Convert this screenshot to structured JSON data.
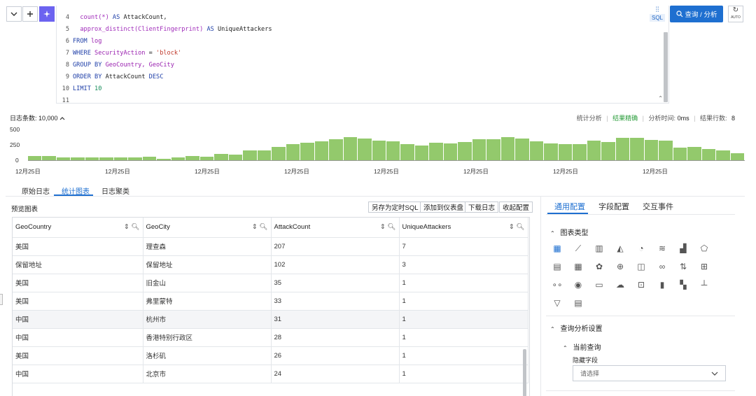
{
  "editor": {
    "lines": [
      {
        "n": "4",
        "tokens": [
          {
            "t": "  count(*) ",
            "c": "fn"
          },
          {
            "t": "AS ",
            "c": "kw"
          },
          {
            "t": "AttackCount,",
            "c": "tx"
          }
        ]
      },
      {
        "n": "5",
        "tokens": [
          {
            "t": "  approx_distinct(ClientFingerprint) ",
            "c": "fn"
          },
          {
            "t": "AS ",
            "c": "kw"
          },
          {
            "t": "UniqueAttackers",
            "c": "tx"
          }
        ]
      },
      {
        "n": "6",
        "tokens": [
          {
            "t": "FROM ",
            "c": "kw"
          },
          {
            "t": "log",
            "c": "id"
          }
        ]
      },
      {
        "n": "7",
        "tokens": [
          {
            "t": "WHERE ",
            "c": "kw"
          },
          {
            "t": "SecurityAction ",
            "c": "id"
          },
          {
            "t": "= ",
            "c": "tx"
          },
          {
            "t": "'block'",
            "c": "str"
          }
        ]
      },
      {
        "n": "8",
        "tokens": [
          {
            "t": "GROUP BY ",
            "c": "kw"
          },
          {
            "t": "GeoCountry, GeoCity",
            "c": "id"
          }
        ]
      },
      {
        "n": "9",
        "tokens": [
          {
            "t": "ORDER BY ",
            "c": "kw"
          },
          {
            "t": "AttackCount ",
            "c": "tx"
          },
          {
            "t": "DESC",
            "c": "kw"
          }
        ]
      },
      {
        "n": "10",
        "tokens": [
          {
            "t": "LIMIT ",
            "c": "kw"
          },
          {
            "t": "10",
            "c": "num"
          }
        ]
      },
      {
        "n": "11",
        "tokens": []
      }
    ],
    "sql_badge": "SQL"
  },
  "toolbar": {
    "query_button": "查询 / 分析",
    "auto_label": "AUTO"
  },
  "histogram": {
    "count_label": "日志条数: 10,000",
    "stats_label": "统计分析",
    "accuracy": "结果精确",
    "time_label": "分析时间:",
    "time_value": "0ms",
    "rows_label": "结果行数:",
    "rows_value": "8",
    "y_ticks": [
      "500",
      "250",
      "0"
    ],
    "x_ticks": [
      "12月25日",
      "12月25日",
      "12月25日",
      "12月25日",
      "12月25日",
      "12月25日",
      "12月25日",
      "12月25日"
    ],
    "values": [
      60,
      60,
      40,
      40,
      40,
      40,
      40,
      40,
      50,
      20,
      40,
      60,
      50,
      90,
      80,
      140,
      140,
      190,
      230,
      250,
      270,
      300,
      330,
      310,
      280,
      270,
      230,
      210,
      250,
      240,
      260,
      300,
      300,
      330,
      310,
      270,
      240,
      230,
      230,
      280,
      260,
      320,
      320,
      290,
      280,
      180,
      190,
      160,
      140,
      100
    ]
  },
  "tabs": [
    "原始日志",
    "统计图表",
    "日志聚类"
  ],
  "preview": {
    "title": "预览图表",
    "actions": [
      "另存为定时SQL",
      "添加到仪表盘",
      "下载日志",
      "收起配置"
    ]
  },
  "table": {
    "columns": [
      "GeoCountry",
      "GeoCity",
      "AttackCount",
      "UniqueAttackers"
    ],
    "rows": [
      [
        "美国",
        "理查森",
        "207",
        "7"
      ],
      [
        "保留地址",
        "保留地址",
        "102",
        "3"
      ],
      [
        "美国",
        "旧金山",
        "35",
        "1"
      ],
      [
        "美国",
        "弗里蒙特",
        "33",
        "1"
      ],
      [
        "中国",
        "杭州市",
        "31",
        "1"
      ],
      [
        "中国",
        "香港特别行政区",
        "28",
        "1"
      ],
      [
        "美国",
        "洛杉矶",
        "26",
        "1"
      ],
      [
        "中国",
        "北京市",
        "24",
        "1"
      ]
    ]
  },
  "config": {
    "tabs": [
      "通用配置",
      "字段配置",
      "交互事件"
    ],
    "chart_type_label": "图表类型",
    "query_settings_label": "查询分析设置",
    "current_query_label": "当前查询",
    "hidden_fields_label": "隐藏字段",
    "select_placeholder": "请选择",
    "chart_icons": [
      "table-chart-icon",
      "line-chart-icon",
      "column-chart-icon",
      "area-chart-icon",
      "pie-chart-icon",
      "flow-chart-icon",
      "bar-chart-icon",
      "radar-chart-icon",
      "grid-table-icon",
      "single-value-icon",
      "china-map-icon",
      "world-map-icon",
      "map-icon",
      "sankey-icon",
      "timeline-icon",
      "candlestick-icon",
      "progress-icon",
      "location-map-icon",
      "list-icon",
      "word-cloud-icon",
      "topology-icon",
      "rect-icon",
      "heatmap-icon",
      "histogram-icon",
      "funnel-icon",
      "cross-table-icon"
    ]
  }
}
